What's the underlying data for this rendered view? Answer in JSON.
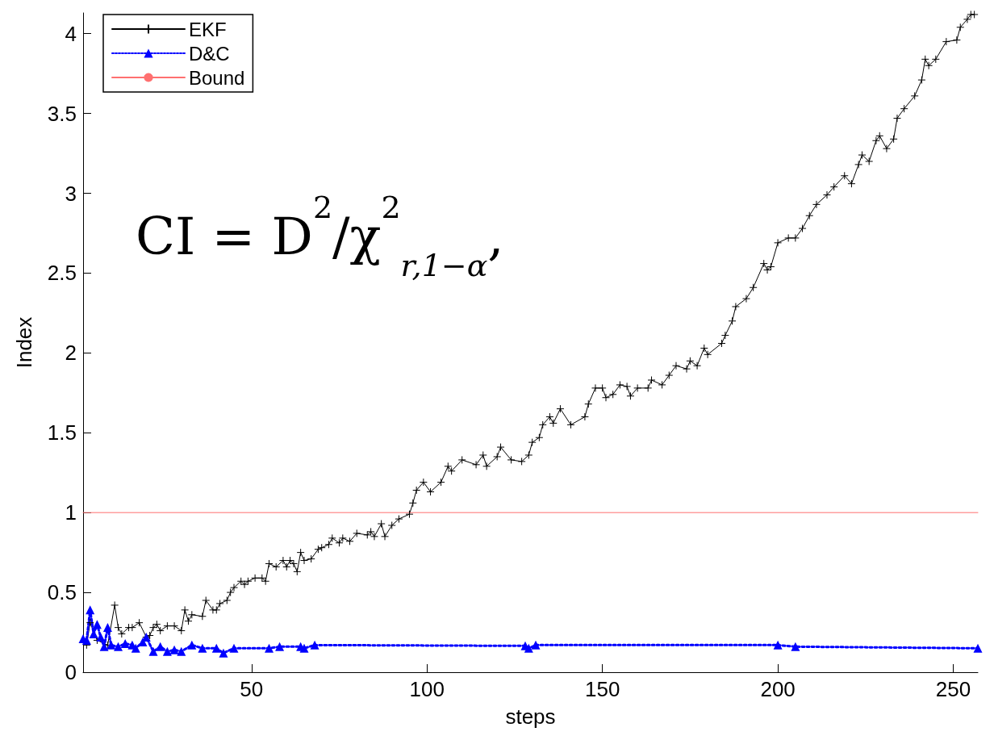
{
  "chart_data": {
    "type": "line",
    "xlabel": "steps",
    "ylabel": "Index",
    "annotations": [
      "CI = D$^{2}$/χ$^{2}$$_{r,1−α}$,"
    ],
    "xlim": [
      2,
      257
    ],
    "xticks": [
      50,
      100,
      150,
      200,
      250
    ],
    "ylim": [
      0,
      4.13
    ],
    "yticks": [
      0,
      0.5,
      1,
      1.5,
      2,
      2.5,
      3,
      3.5,
      4
    ],
    "grid": false,
    "legend": "top left",
    "series": [
      {
        "name": "EKF",
        "color": "#000000",
        "marker": "cross",
        "line_style": "solid",
        "x": [
          3,
          4,
          6,
          9,
          11,
          12,
          13,
          15,
          16,
          18,
          20,
          21,
          22,
          23,
          24,
          26,
          28,
          30,
          31,
          32,
          33,
          36,
          37,
          39,
          40,
          41,
          43,
          44,
          45,
          47,
          48,
          49,
          51,
          53,
          54,
          55,
          57,
          59,
          60,
          61,
          62,
          63,
          64,
          65,
          67,
          69,
          70,
          72,
          73,
          75,
          76,
          78,
          80,
          83,
          84,
          85,
          87,
          88,
          90,
          92,
          95,
          96,
          97,
          99,
          101,
          104,
          106,
          107,
          110,
          114,
          116,
          117,
          120,
          121,
          124,
          127,
          129,
          130,
          132,
          133,
          135,
          136,
          138,
          141,
          145,
          146,
          148,
          150,
          151,
          153,
          155,
          157,
          158,
          160,
          163,
          164,
          167,
          169,
          171,
          174,
          175,
          177,
          179,
          180,
          184,
          185,
          187,
          188,
          191,
          193,
          196,
          197,
          198,
          200,
          203,
          205,
          207,
          209,
          211,
          214,
          216,
          219,
          221,
          223,
          224,
          226,
          228,
          229,
          231,
          233,
          234,
          236,
          239,
          241,
          242,
          243,
          245,
          248,
          251,
          252,
          254,
          255,
          256
        ],
        "values": [
          0.17,
          0.31,
          0.2,
          0.17,
          0.42,
          0.28,
          0.24,
          0.28,
          0.28,
          0.31,
          0.22,
          0.23,
          0.28,
          0.3,
          0.26,
          0.29,
          0.29,
          0.26,
          0.39,
          0.32,
          0.36,
          0.35,
          0.45,
          0.39,
          0.39,
          0.43,
          0.45,
          0.5,
          0.53,
          0.57,
          0.55,
          0.57,
          0.59,
          0.59,
          0.57,
          0.68,
          0.66,
          0.7,
          0.66,
          0.7,
          0.68,
          0.63,
          0.75,
          0.7,
          0.71,
          0.77,
          0.78,
          0.8,
          0.84,
          0.81,
          0.84,
          0.82,
          0.87,
          0.86,
          0.88,
          0.85,
          0.93,
          0.85,
          0.92,
          0.96,
          0.99,
          1.06,
          1.14,
          1.19,
          1.13,
          1.19,
          1.29,
          1.26,
          1.33,
          1.3,
          1.36,
          1.29,
          1.35,
          1.41,
          1.33,
          1.32,
          1.36,
          1.44,
          1.47,
          1.55,
          1.6,
          1.56,
          1.65,
          1.55,
          1.6,
          1.68,
          1.78,
          1.78,
          1.72,
          1.74,
          1.8,
          1.79,
          1.73,
          1.78,
          1.78,
          1.83,
          1.8,
          1.86,
          1.92,
          1.9,
          1.95,
          1.92,
          2.03,
          1.99,
          2.06,
          2.11,
          2.2,
          2.29,
          2.34,
          2.41,
          2.56,
          2.52,
          2.54,
          2.69,
          2.72,
          2.72,
          2.78,
          2.86,
          2.93,
          2.99,
          3.04,
          3.11,
          3.06,
          3.18,
          3.24,
          3.2,
          3.33,
          3.36,
          3.28,
          3.34,
          3.47,
          3.53,
          3.61,
          3.71,
          3.84,
          3.8,
          3.84,
          3.95,
          3.96,
          4.04,
          4.09,
          4.12,
          4.12
        ]
      },
      {
        "name": "D&C",
        "color": "#0000ff",
        "marker": "triangle",
        "line_style": "dotted",
        "x": [
          2,
          3,
          4,
          5,
          6,
          7,
          8,
          9,
          10,
          12,
          14,
          16,
          17,
          19,
          20,
          22,
          24,
          26,
          28,
          30,
          33,
          36,
          40,
          42,
          45,
          55,
          58,
          64,
          65,
          68,
          128,
          129,
          131,
          200,
          205,
          257
        ],
        "values": [
          0.21,
          0.2,
          0.39,
          0.24,
          0.3,
          0.22,
          0.16,
          0.28,
          0.17,
          0.16,
          0.18,
          0.17,
          0.15,
          0.19,
          0.22,
          0.13,
          0.16,
          0.13,
          0.14,
          0.13,
          0.17,
          0.15,
          0.15,
          0.12,
          0.15,
          0.15,
          0.16,
          0.16,
          0.15,
          0.17,
          0.165,
          0.15,
          0.17,
          0.17,
          0.16,
          0.15
        ]
      },
      {
        "name": "Bound",
        "color": "#ff7070",
        "marker": "none",
        "line_style": "solid",
        "x": [
          2,
          257
        ],
        "values": [
          1,
          1
        ]
      }
    ]
  }
}
